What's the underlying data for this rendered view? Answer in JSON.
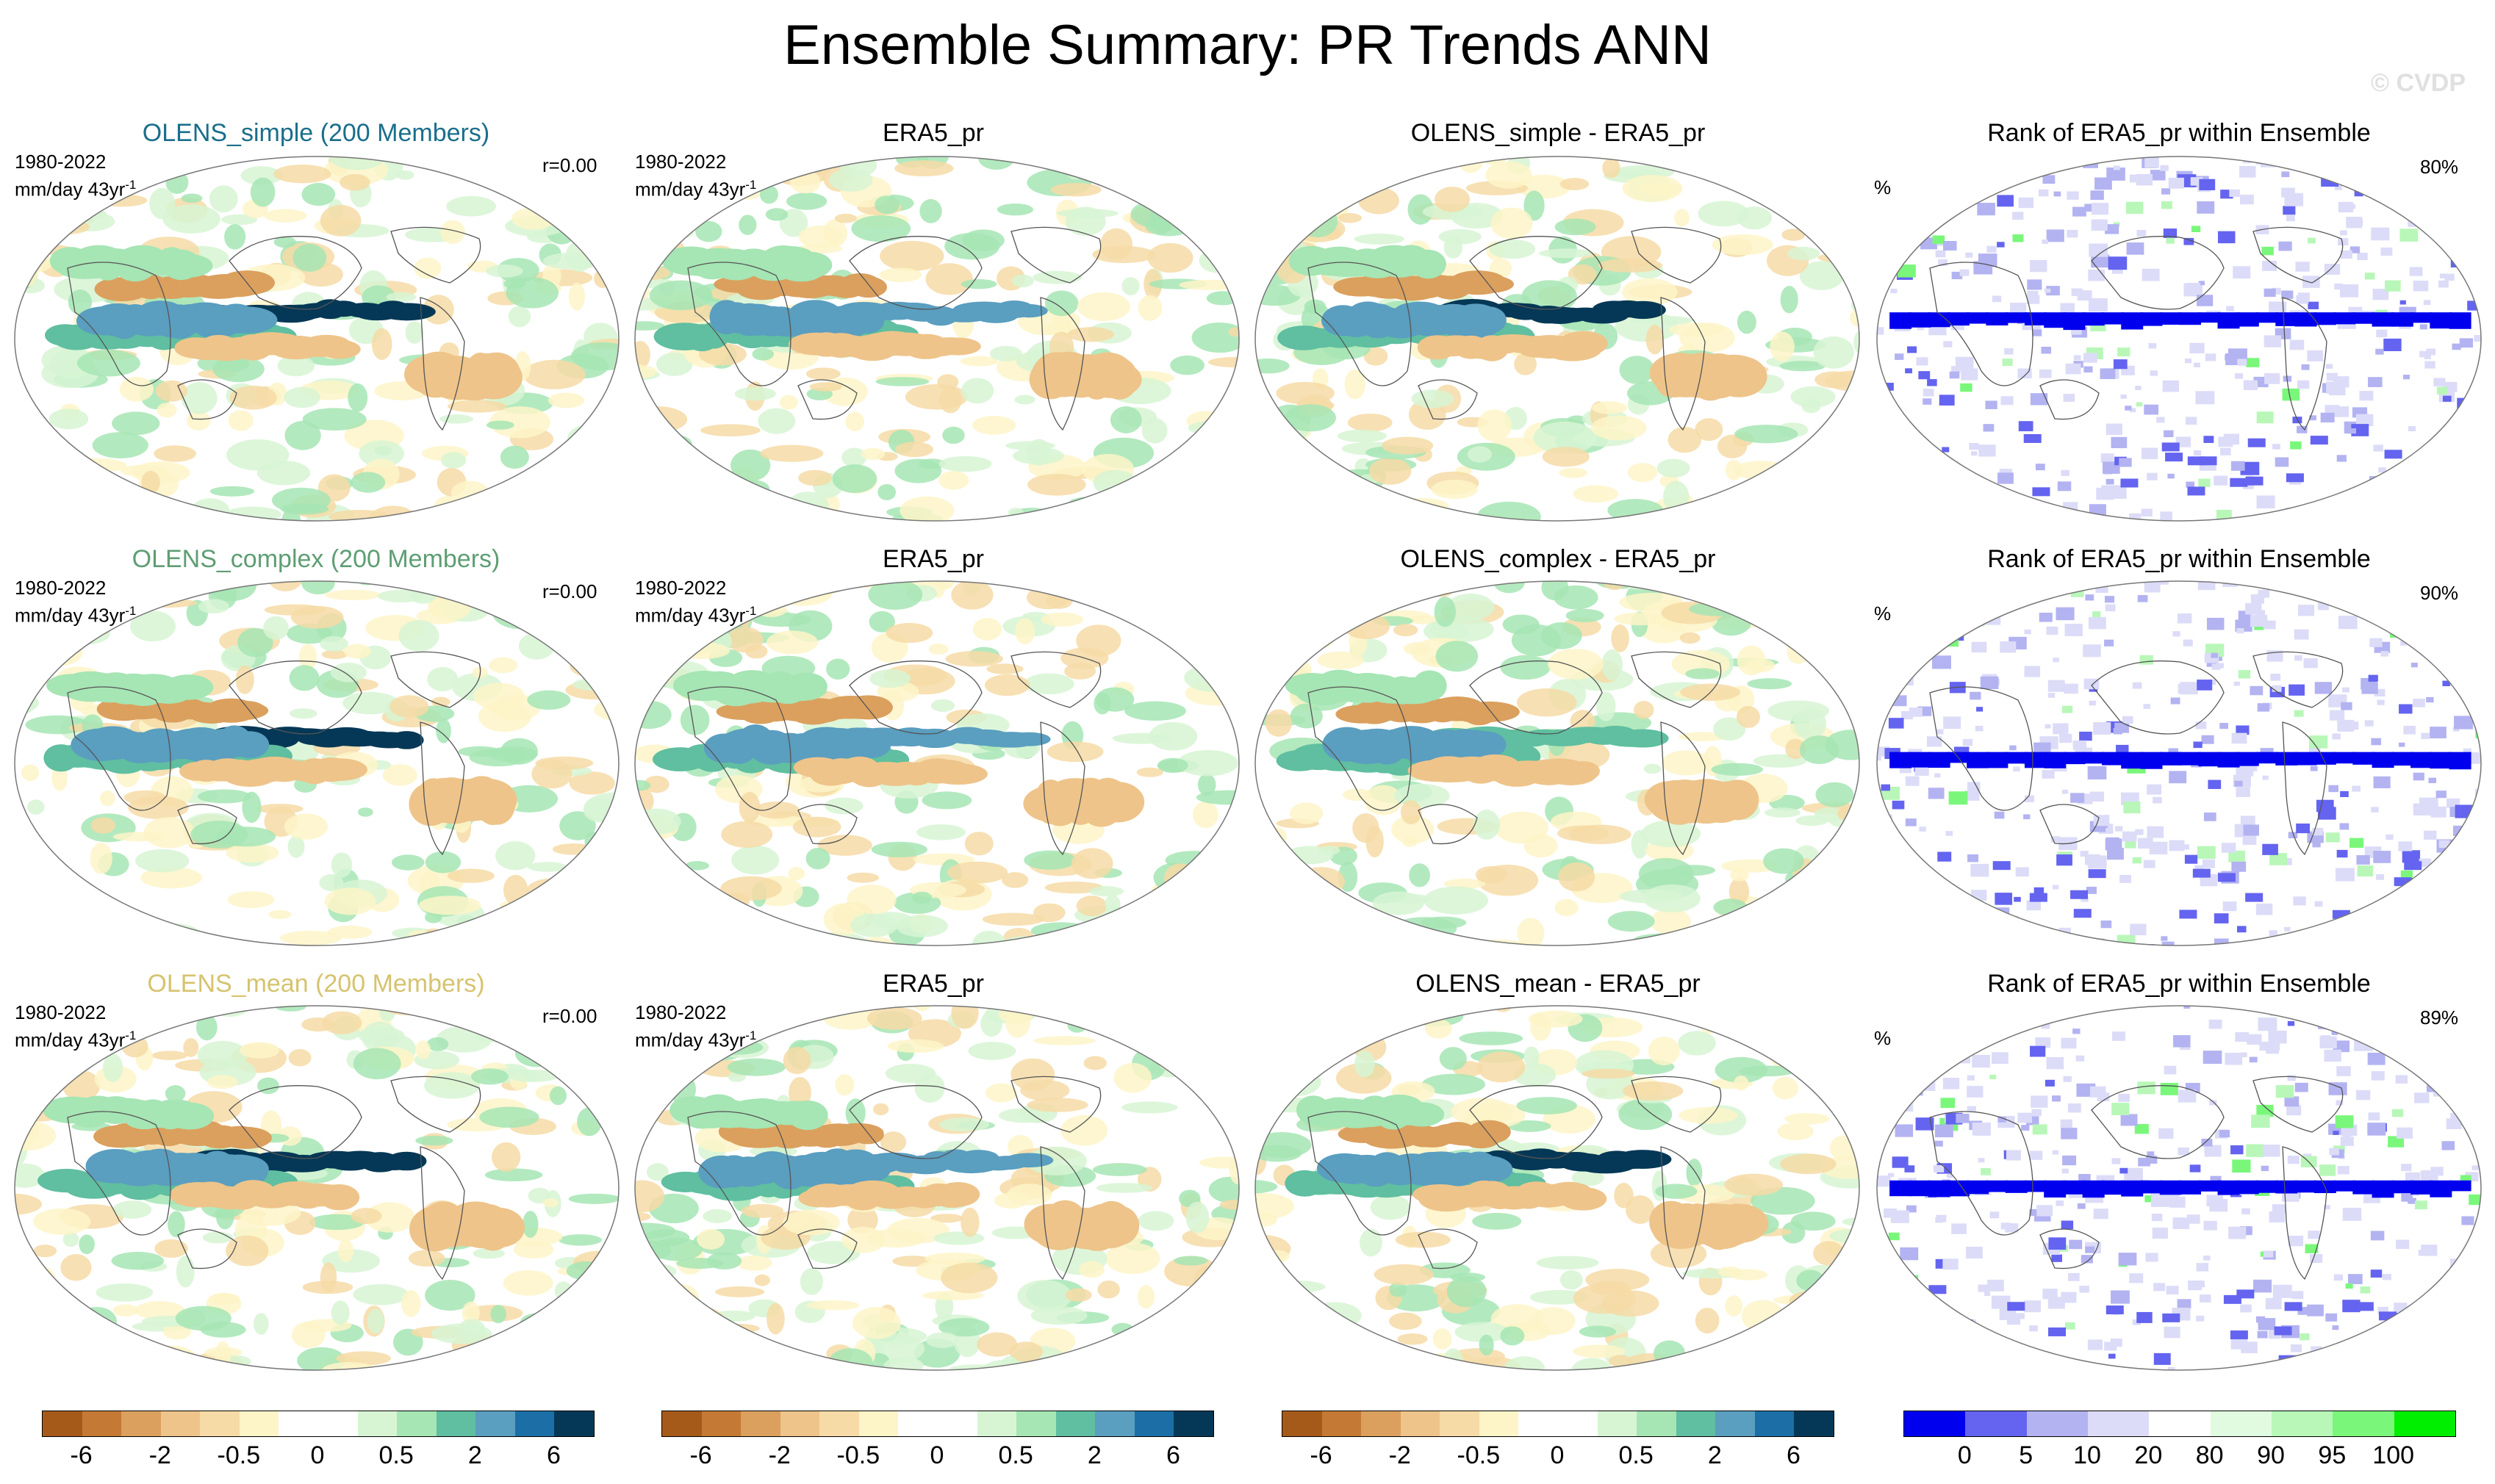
{
  "title": "Ensemble Summary: PR Trends ANN",
  "watermark": "© CVDP",
  "rows": [
    {
      "model_title": "OLENS_simple (200 Members)",
      "model_color": "#1a6e8c",
      "period": "1980-2022",
      "units": "mm/day 43yr",
      "units_exp": "-1",
      "corr": "r=0.00",
      "obs_title": "ERA5_pr",
      "diff_title": "OLENS_simple - ERA5_pr",
      "rank_title": "Rank of ERA5_pr within Ensemble",
      "pct_symbol": "%",
      "pct_value": "80%"
    },
    {
      "model_title": "OLENS_complex (200 Members)",
      "model_color": "#5e9e74",
      "period": "1980-2022",
      "units": "mm/day 43yr",
      "units_exp": "-1",
      "corr": "r=0.00",
      "obs_title": "ERA5_pr",
      "diff_title": "OLENS_complex - ERA5_pr",
      "rank_title": "Rank of ERA5_pr within Ensemble",
      "pct_symbol": "%",
      "pct_value": "90%"
    },
    {
      "model_title": "OLENS_mean (200 Members)",
      "model_color": "#d6c36e",
      "period": "1980-2022",
      "units": "mm/day 43yr",
      "units_exp": "-1",
      "corr": "r=0.00",
      "obs_title": "ERA5_pr",
      "diff_title": "OLENS_mean - ERA5_pr",
      "rank_title": "Rank of ERA5_pr within Ensemble",
      "pct_symbol": "%",
      "pct_value": "89%"
    }
  ],
  "colorbars": {
    "trend": {
      "colors": [
        "#a65a1a",
        "#c47a35",
        "#dba05e",
        "#eec48a",
        "#f6dba6",
        "#fdf4c8",
        "#ffffff",
        "#ffffff",
        "#d7f5d3",
        "#a6e5b4",
        "#5fbfa0",
        "#5a9ec0",
        "#1c6fa6",
        "#053856"
      ],
      "tick_labels": [
        "-6",
        "-2",
        "-0.5",
        "0",
        "0.5",
        "2",
        "6"
      ]
    },
    "rank": {
      "colors": [
        "#0000ee",
        "#6464f0",
        "#b3b3f2",
        "#dcdcf8",
        "#ffffff",
        "#e0fbe0",
        "#b8f7b8",
        "#7af77a",
        "#00ee00"
      ],
      "tick_labels": [
        "0",
        "5",
        "10",
        "20",
        "80",
        "90",
        "95",
        "100"
      ]
    }
  },
  "chart_data": [
    {
      "type": "heatmap",
      "title": "OLENS_simple (200 Members)",
      "kind": "trend"
    },
    {
      "type": "heatmap",
      "title": "ERA5_pr",
      "kind": "trend"
    },
    {
      "type": "heatmap",
      "title": "OLENS_simple - ERA5_pr",
      "kind": "trend"
    },
    {
      "type": "heatmap",
      "title": "Rank of ERA5_pr within Ensemble",
      "kind": "rank"
    },
    {
      "type": "heatmap",
      "title": "OLENS_complex (200 Members)",
      "kind": "trend"
    },
    {
      "type": "heatmap",
      "title": "ERA5_pr",
      "kind": "trend"
    },
    {
      "type": "heatmap",
      "title": "OLENS_complex - ERA5_pr",
      "kind": "trend"
    },
    {
      "type": "heatmap",
      "title": "Rank of ERA5_pr within Ensemble",
      "kind": "rank"
    },
    {
      "type": "heatmap",
      "title": "OLENS_mean (200 Members)",
      "kind": "trend"
    },
    {
      "type": "heatmap",
      "title": "ERA5_pr",
      "kind": "trend"
    },
    {
      "type": "heatmap",
      "title": "OLENS_mean - ERA5_pr",
      "kind": "trend"
    },
    {
      "type": "heatmap",
      "title": "Rank of ERA5_pr within Ensemble",
      "kind": "rank"
    }
  ]
}
